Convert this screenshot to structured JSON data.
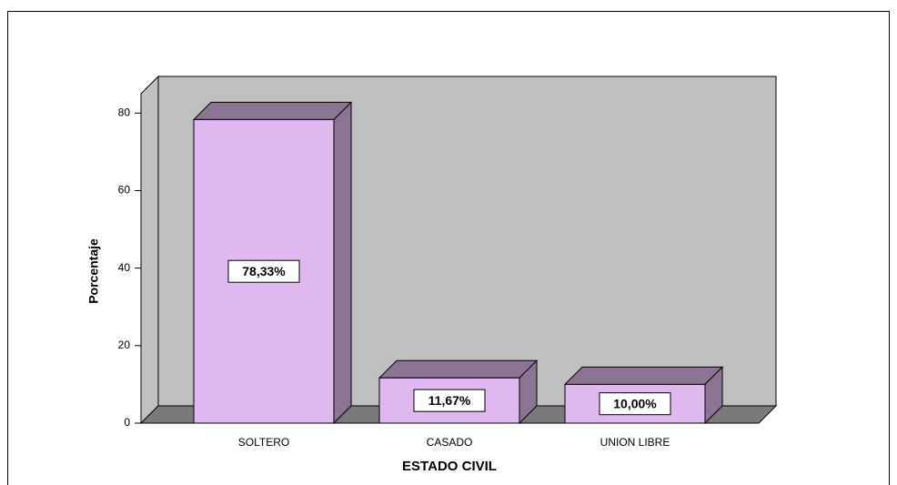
{
  "chart_data": {
    "type": "bar3d",
    "y_label": "Porcentaje",
    "x_label": "ESTADO CIVIL",
    "categories": [
      "SOLTERO",
      "CASADO",
      "UNION LIBRE"
    ],
    "values": [
      78.33,
      11.67,
      10.0
    ],
    "value_labels": [
      "78,33%",
      "11,67%",
      "10,00%"
    ],
    "color": "#dfb8f0",
    "side_color": "#8c7494",
    "ylim": [
      0,
      85
    ],
    "yticks": [
      0,
      20,
      40,
      60,
      80
    ]
  }
}
